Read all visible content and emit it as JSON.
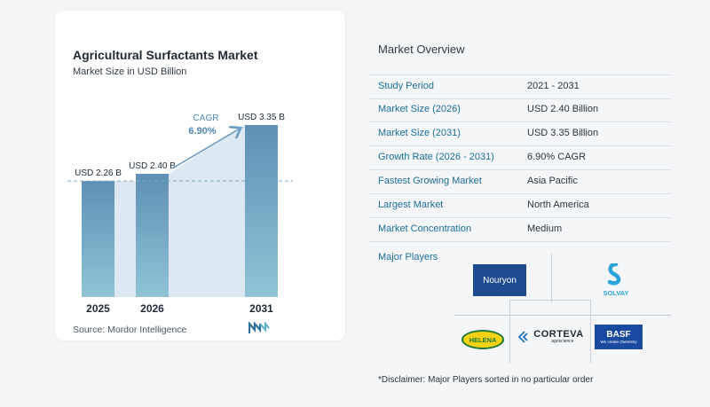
{
  "chart_card": {
    "title": "Agricultural Surfactants Market",
    "subtitle": "Market Size in USD Billion",
    "source": "Source:  Mordor Intelligence",
    "cagr_label": "CAGR",
    "cagr_value": "6.90%"
  },
  "chart_data": {
    "type": "bar",
    "title": "Agricultural Surfactants Market",
    "subtitle": "Market Size in USD Billion",
    "categories": [
      "2025",
      "2026",
      "2031"
    ],
    "values": [
      2.26,
      2.4,
      3.35
    ],
    "value_labels": [
      "USD 2.26 B",
      "USD 2.40 B",
      "USD 3.35 B"
    ],
    "ylim": [
      0,
      3.35
    ],
    "reference_line_value": 2.26,
    "annotation": {
      "label": "CAGR",
      "value": "6.90%",
      "from": "2026",
      "to": "2031"
    },
    "grid": false,
    "colors": {
      "bar_top": "#5e8fb5",
      "bar_bottom": "#8fc4d6",
      "shade": "#dde8f2",
      "arrow": "#6b9ec2",
      "cagr_text": "#4f86b0"
    }
  },
  "overview": {
    "title": "Market Overview",
    "rows": [
      {
        "label": "Study Period",
        "value": "2021 - 2031"
      },
      {
        "label": "Market Size (2026)",
        "value": "USD 2.40 Billion"
      },
      {
        "label": "Market Size (2031)",
        "value": "USD 3.35 Billion"
      },
      {
        "label": "Growth Rate (2026 - 2031)",
        "value": "6.90% CAGR"
      },
      {
        "label": "Fastest Growing Market",
        "value": "Asia Pacific"
      },
      {
        "label": "Largest Market",
        "value": "North America"
      },
      {
        "label": "Market Concentration",
        "value": "Medium"
      }
    ],
    "players_label": "Major Players",
    "players": {
      "nouryon": "Nouryon",
      "solvay": "SOLVAY",
      "helena": "HELENA",
      "corteva": "CORTEVA",
      "corteva_sub": "agriscience",
      "basf": "BASF",
      "basf_sub": "We create chemistry"
    },
    "disclaimer": "*Disclaimer: Major Players sorted in no particular order"
  }
}
